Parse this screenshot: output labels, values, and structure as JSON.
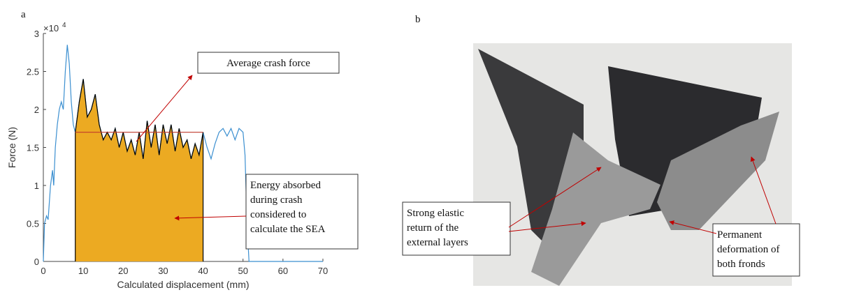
{
  "chart_data": {
    "type": "line",
    "xlabel": "Calculated displacement (mm)",
    "ylabel": "Force (N)",
    "y_multiplier": {
      "base": "×10",
      "exponent": "4"
    },
    "x": [
      0,
      0.3,
      0.8,
      1.2,
      1.8,
      2.3,
      2.6,
      3,
      3.5,
      4,
      4.5,
      5,
      5.5,
      6,
      6.5,
      7,
      7.5,
      8,
      9,
      10,
      11,
      12,
      13,
      14,
      15,
      16,
      17,
      18,
      19,
      20,
      21,
      22,
      23,
      24,
      25,
      26,
      27,
      28,
      29,
      30,
      31,
      32,
      33,
      34,
      35,
      36,
      37,
      38,
      39,
      40,
      41,
      42,
      43,
      44,
      45,
      46,
      47,
      48,
      49,
      50,
      50.5,
      51,
      51.5,
      70
    ],
    "series": [
      {
        "color": "#3b8fd0",
        "values": [
          0,
          0.5,
          0.6,
          0.55,
          1.0,
          1.2,
          1.0,
          1.5,
          1.8,
          2.0,
          2.1,
          2.0,
          2.5,
          2.85,
          2.6,
          2.1,
          1.8,
          1.7,
          2.1,
          2.4,
          1.9,
          2.0,
          2.2,
          1.8,
          1.6,
          1.7,
          1.6,
          1.75,
          1.5,
          1.7,
          1.45,
          1.6,
          1.4,
          1.7,
          1.35,
          1.85,
          1.5,
          1.8,
          1.4,
          1.8,
          1.55,
          1.8,
          1.45,
          1.75,
          1.5,
          1.6,
          1.35,
          1.55,
          1.4,
          1.7,
          1.5,
          1.35,
          1.55,
          1.7,
          1.75,
          1.65,
          1.75,
          1.6,
          1.75,
          1.7,
          1.4,
          0.5,
          0,
          0
        ]
      }
    ],
    "fill_range": [
      8,
      40
    ],
    "fill_color": "#ecaa22",
    "average_force": 1.7,
    "average_color": "#c0392b",
    "xlim": [
      0,
      70
    ],
    "ylim": [
      0,
      3
    ],
    "xticks": [
      0,
      10,
      20,
      30,
      40,
      50,
      60,
      70
    ],
    "yticks": [
      0,
      0.5,
      1,
      1.5,
      2,
      2.5,
      3
    ],
    "annotations": [
      {
        "lines": [
          "Average  crash force"
        ]
      },
      {
        "lines": [
          "Energy absorbed",
          "during crash",
          "considered to",
          "calculate the SEA"
        ]
      }
    ]
  },
  "panel_labels": [
    "a",
    "b"
  ],
  "photo": {
    "annotations": [
      {
        "lines": [
          "Strong elastic",
          "return of the",
          "external layers"
        ]
      },
      {
        "lines": [
          "Permanent",
          "deformation of",
          "both fronds"
        ]
      }
    ]
  }
}
